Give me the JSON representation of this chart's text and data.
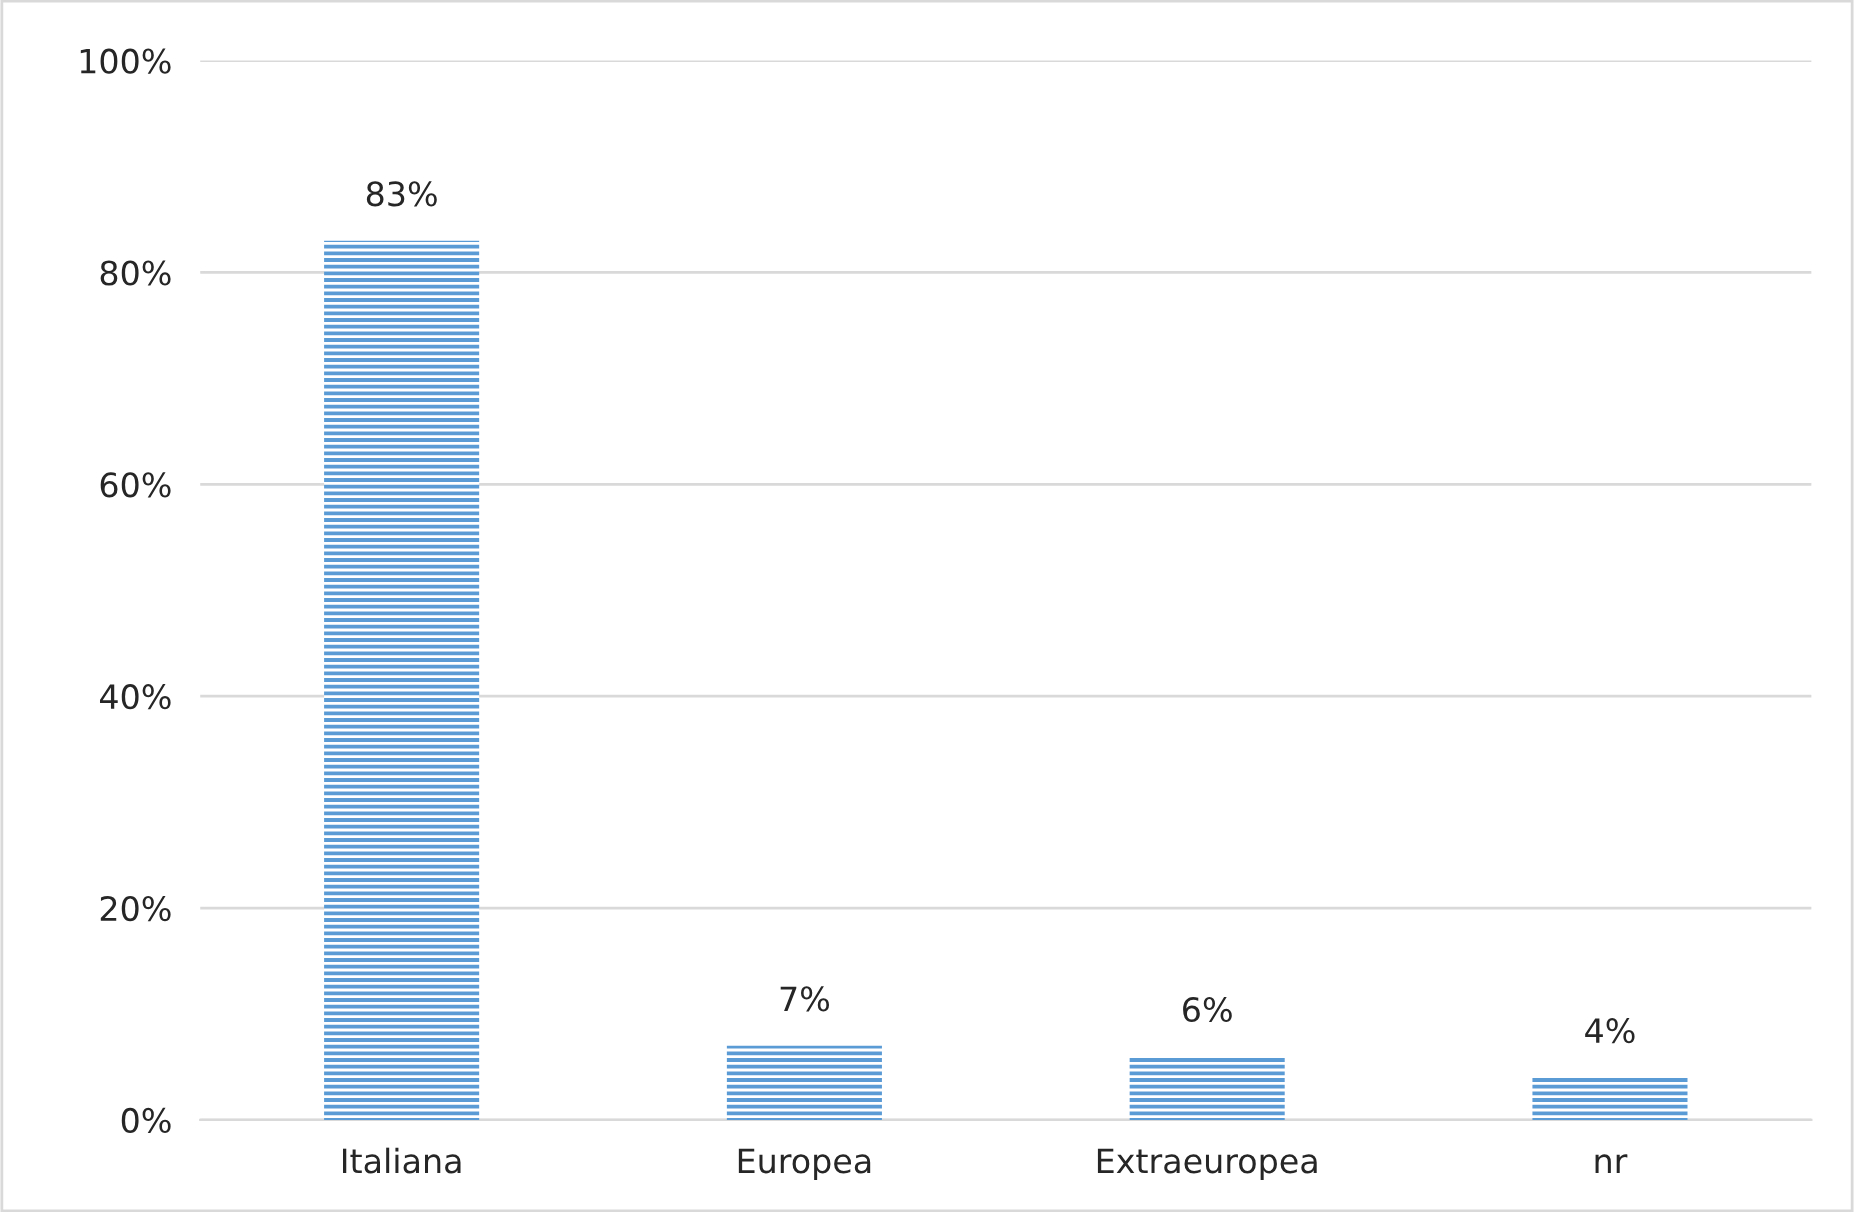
{
  "chart_data": {
    "type": "bar",
    "categories": [
      "Italiana",
      "Europea",
      "Extraeuropea",
      "nr"
    ],
    "values": [
      83,
      7,
      6,
      4
    ],
    "value_labels": [
      "83%",
      "7%",
      "6%",
      "4%"
    ],
    "color": "#5b9bd5",
    "ylim": [
      0,
      100
    ],
    "yticks": [
      {
        "value": 0,
        "label": "0%"
      },
      {
        "value": 20,
        "label": "20%"
      },
      {
        "value": 40,
        "label": "40%"
      },
      {
        "value": 60,
        "label": "60%"
      },
      {
        "value": 80,
        "label": "80%"
      },
      {
        "value": 100,
        "label": "100%"
      }
    ],
    "grid": "y",
    "legend": false
  }
}
